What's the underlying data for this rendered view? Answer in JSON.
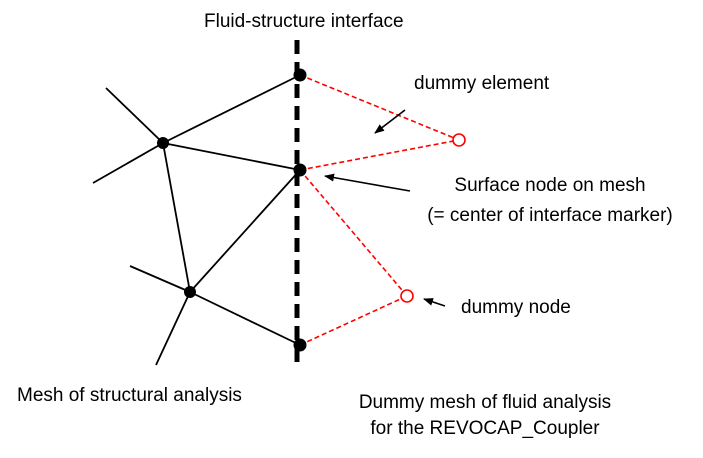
{
  "labels": {
    "interface": "Fluid-structure interface",
    "dummy_element": "dummy element",
    "surface_node_line1": "Surface node on mesh",
    "surface_node_line2": "(= center of interface marker)",
    "dummy_node": "dummy node",
    "structural_mesh": "Mesh of structural analysis",
    "fluid_mesh_line1": "Dummy mesh of fluid analysis",
    "fluid_mesh_line2": "for the REVOCAP_Coupler"
  },
  "colors": {
    "structure": "#000000",
    "dummy": "#ff0000",
    "text": "#000000"
  }
}
